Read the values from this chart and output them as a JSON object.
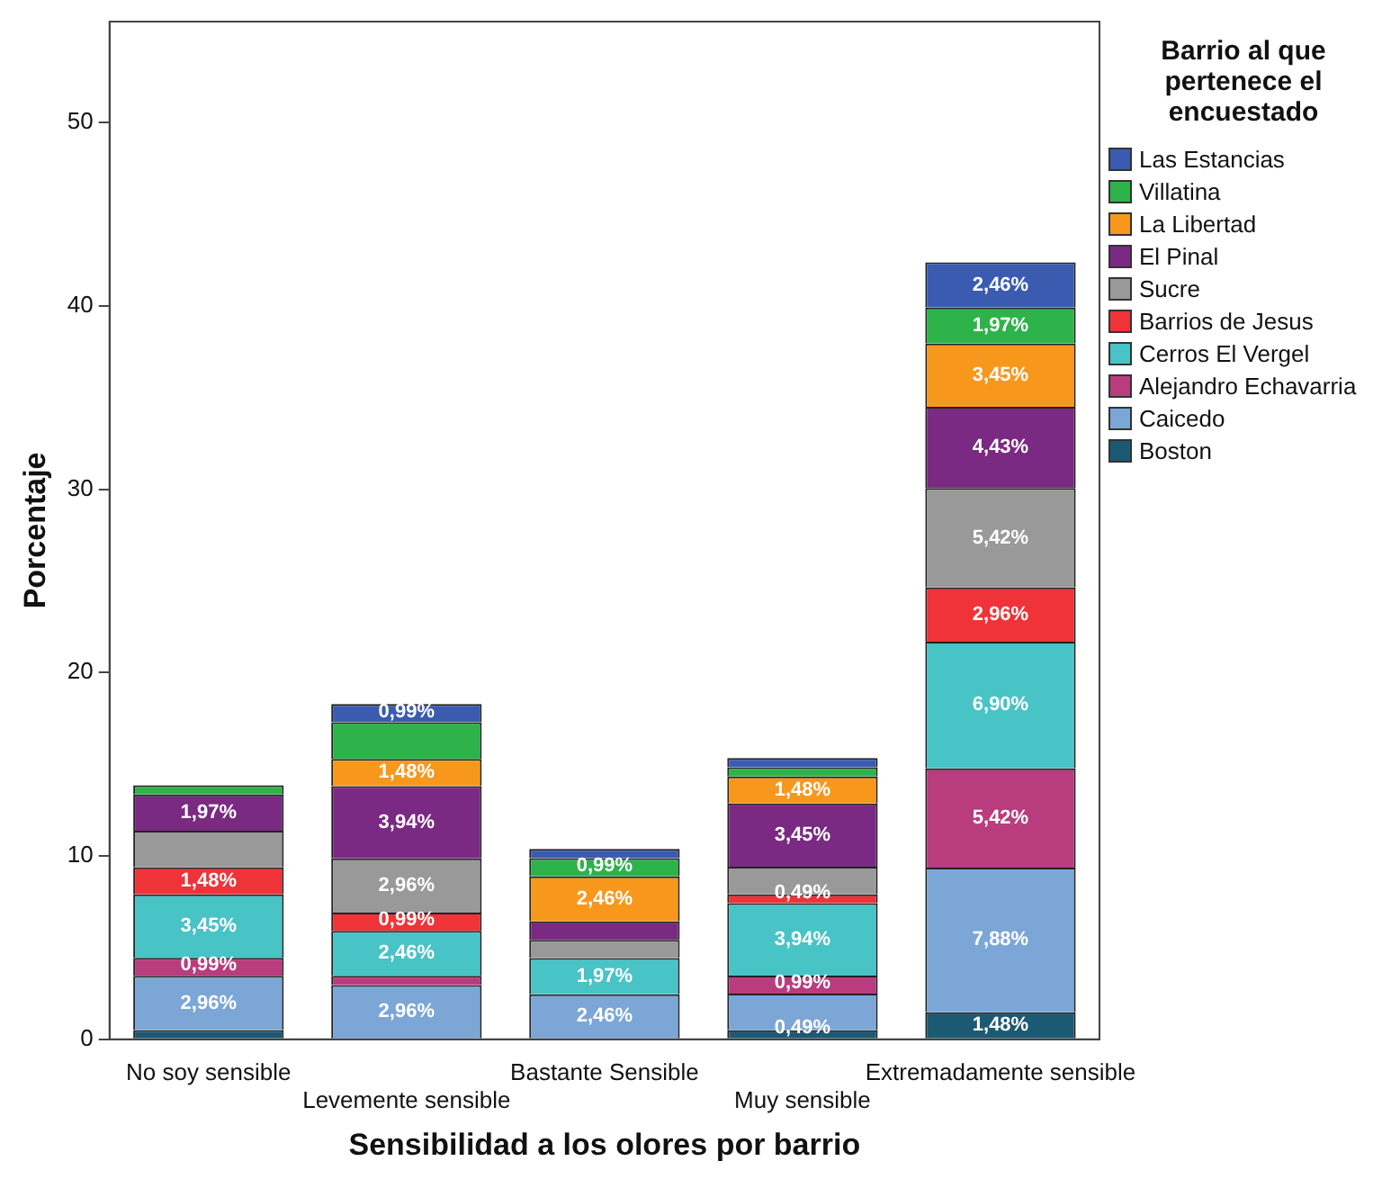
{
  "chart_data": {
    "type": "bar",
    "stacked": true,
    "xlabel": "Sensibilidad a los olores por barrio",
    "ylabel": "Porcentaje",
    "legend_title": "Barrio al que pertenece el encuestado",
    "legend": "right",
    "grid": false,
    "ylim": [
      0,
      55.5
    ],
    "yticks": [
      0,
      10,
      20,
      30,
      40,
      50
    ],
    "categories": [
      "No soy sensible",
      "Levemente sensible",
      "Bastante Sensible",
      "Muy sensible",
      "Extremadamente sensible"
    ],
    "series": [
      {
        "name": "Boston",
        "color": "#1c5a73",
        "values": [
          0.5,
          0,
          0,
          0.49,
          1.48
        ],
        "value_labels": [
          null,
          null,
          null,
          "0,49%",
          "1,48%"
        ]
      },
      {
        "name": "Caicedo",
        "color": "#7ba6d6",
        "values": [
          2.96,
          2.96,
          2.46,
          2,
          7.88
        ],
        "value_labels": [
          "2,96%",
          "2,96%",
          "2,46%",
          null,
          "7,88%"
        ]
      },
      {
        "name": "Alejandro Echavarria",
        "color": "#b83c7e",
        "values": [
          0.99,
          0.5,
          0,
          0.99,
          5.42
        ],
        "value_labels": [
          "0,99%",
          null,
          null,
          "0,99%",
          "5,42%"
        ]
      },
      {
        "name": "Cerros El Vergel",
        "color": "#48c3c6",
        "values": [
          3.45,
          2.46,
          1.97,
          3.94,
          6.9
        ],
        "value_labels": [
          "3,45%",
          "2,46%",
          "1,97%",
          "3,94%",
          "6,90%"
        ]
      },
      {
        "name": "Barrios de Jesus",
        "color": "#ef3338",
        "values": [
          1.48,
          0.99,
          0,
          0.49,
          2.96
        ],
        "value_labels": [
          "1,48%",
          "0,99%",
          null,
          "0,49%",
          "2,96%"
        ]
      },
      {
        "name": "Sucre",
        "color": "#999999",
        "values": [
          2,
          2.96,
          1,
          1.5,
          5.42
        ],
        "value_labels": [
          null,
          "2,96%",
          null,
          null,
          "5,42%"
        ]
      },
      {
        "name": "El Pinal",
        "color": "#7a2a82",
        "values": [
          1.97,
          3.94,
          1,
          3.45,
          4.43
        ],
        "value_labels": [
          "1,97%",
          "3,94%",
          null,
          "3,45%",
          "4,43%"
        ]
      },
      {
        "name": "La Libertad",
        "color": "#f7981d",
        "values": [
          0,
          1.48,
          2.46,
          1.48,
          3.45
        ],
        "value_labels": [
          null,
          "1,48%",
          "2,46%",
          "1,48%",
          "3,45%"
        ]
      },
      {
        "name": "Villatina",
        "color": "#2db34a",
        "values": [
          0.5,
          2,
          0.99,
          0.5,
          1.97
        ],
        "value_labels": [
          null,
          null,
          "0,99%",
          null,
          "1,97%"
        ]
      },
      {
        "name": "Las Estancias",
        "color": "#3a5bb0",
        "values": [
          0,
          0.99,
          0.5,
          0.5,
          2.46
        ],
        "value_labels": [
          null,
          "0,99%",
          null,
          null,
          "2,46%"
        ]
      }
    ]
  }
}
